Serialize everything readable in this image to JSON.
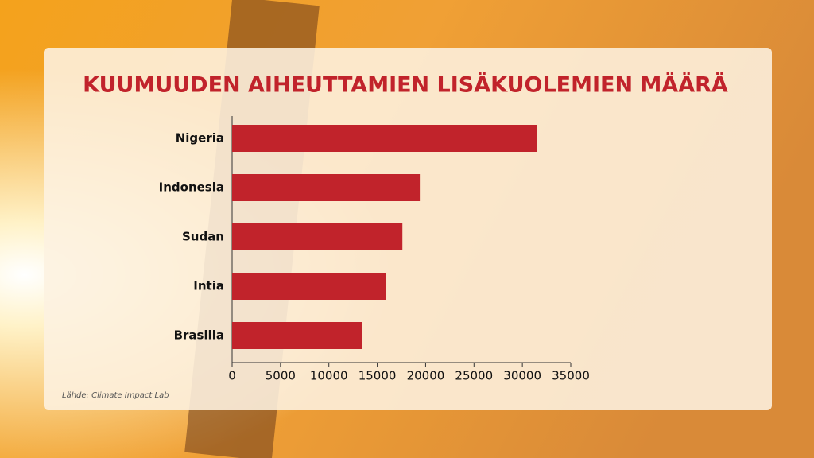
{
  "chart_data": {
    "type": "bar",
    "orientation": "horizontal",
    "title": "KUUMUUDEN AIHEUTTAMIEN LISÄKUOLEMIEN MÄÄRÄ",
    "source": "Lähde: Climate Impact Lab",
    "categories": [
      "Nigeria",
      "Indonesia",
      "Sudan",
      "Intia",
      "Brasilia"
    ],
    "values": [
      31500,
      19400,
      17600,
      15900,
      13400
    ],
    "color": "#c1232b",
    "xlim": [
      0,
      35000
    ],
    "xticks": [
      0,
      5000,
      10000,
      15000,
      20000,
      25000,
      30000,
      35000
    ]
  }
}
